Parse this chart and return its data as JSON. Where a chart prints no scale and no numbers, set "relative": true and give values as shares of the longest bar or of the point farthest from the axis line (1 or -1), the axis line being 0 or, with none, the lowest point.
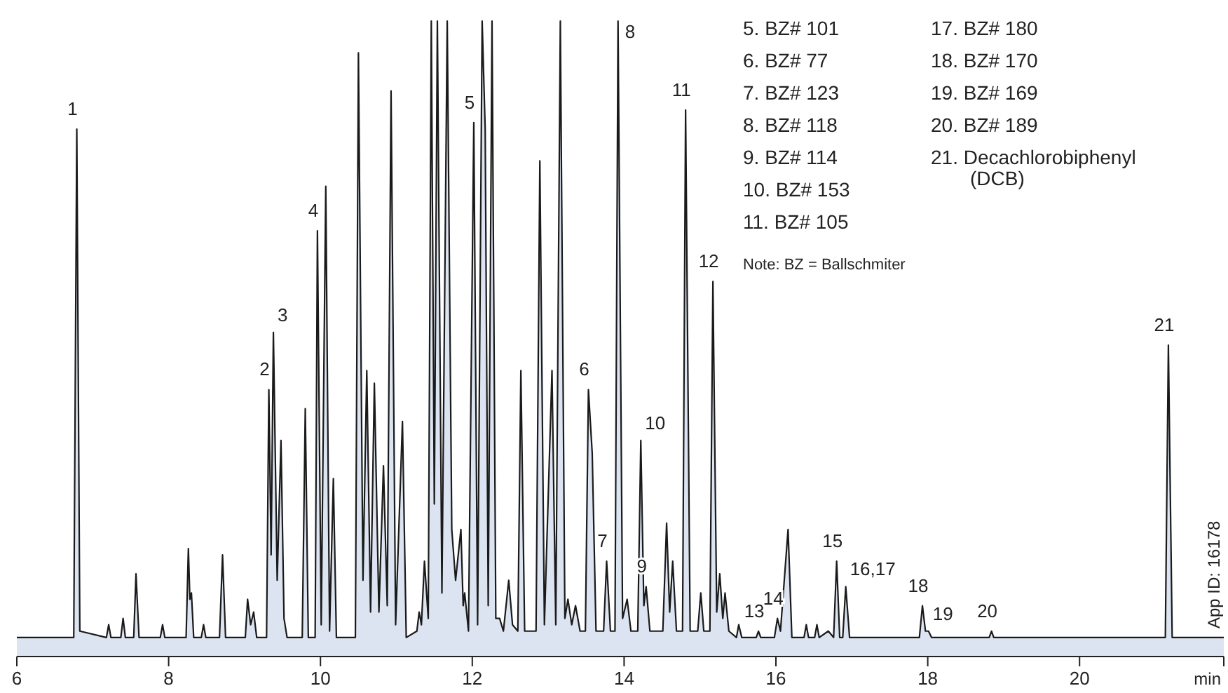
{
  "chart_data": {
    "type": "area",
    "relative": true,
    "xlabel": "min",
    "xlim": [
      6,
      21.9
    ],
    "xticks": [
      6,
      8,
      10,
      12,
      14,
      16,
      18,
      20
    ],
    "series": [
      {
        "color": "#dce4f1",
        "x": [
          6.0,
          6.75,
          6.79,
          6.83,
          7.18,
          7.21,
          7.24,
          7.37,
          7.4,
          7.43,
          7.54,
          7.57,
          7.61,
          7.89,
          7.92,
          7.95,
          8.23,
          8.26,
          8.28,
          8.3,
          8.33,
          8.43,
          8.46,
          8.49,
          8.67,
          8.71,
          8.75,
          9.01,
          9.04,
          9.08,
          9.12,
          9.16,
          9.29,
          9.32,
          9.35,
          9.38,
          9.43,
          9.48,
          9.52,
          9.56,
          9.76,
          9.8,
          9.84,
          9.93,
          9.96,
          10.01,
          10.07,
          10.12,
          10.17,
          10.21,
          10.46,
          10.5,
          10.56,
          10.61,
          10.66,
          10.71,
          10.77,
          10.83,
          10.88,
          10.93,
          10.99,
          11.08,
          11.13,
          11.27,
          11.3,
          11.33,
          11.37,
          11.42,
          11.46,
          11.5,
          11.54,
          11.6,
          11.67,
          11.73,
          11.78,
          11.85,
          11.88,
          11.9,
          11.95,
          12.02,
          12.07,
          12.13,
          12.17,
          12.21,
          12.26,
          12.31,
          12.36,
          12.41,
          12.48,
          12.53,
          12.6,
          12.64,
          12.69,
          12.84,
          12.89,
          12.95,
          13.05,
          13.1,
          13.16,
          13.22,
          13.26,
          13.31,
          13.36,
          13.42,
          13.49,
          13.53,
          13.58,
          13.63,
          13.73,
          13.77,
          13.82,
          13.88,
          13.92,
          13.98,
          14.04,
          14.09,
          14.18,
          14.22,
          14.26,
          14.29,
          14.34,
          14.51,
          14.56,
          14.6,
          14.64,
          14.69,
          14.77,
          14.81,
          14.87,
          14.97,
          15.01,
          15.05,
          15.13,
          15.17,
          15.22,
          15.26,
          15.3,
          15.33,
          15.38,
          15.48,
          15.51,
          15.55,
          15.74,
          15.77,
          15.8,
          15.98,
          16.02,
          16.06,
          16.16,
          16.21,
          16.37,
          16.4,
          16.43,
          16.51,
          16.54,
          16.57,
          16.69,
          16.76,
          16.8,
          16.84,
          16.88,
          16.92,
          16.97,
          17.89,
          17.93,
          17.97,
          18.01,
          18.05,
          18.81,
          18.84,
          18.87,
          21.13,
          21.17,
          21.22,
          21.9
        ],
        "values": [
          0.03,
          0.03,
          0.83,
          0.04,
          0.03,
          0.05,
          0.03,
          0.03,
          0.06,
          0.03,
          0.03,
          0.13,
          0.03,
          0.03,
          0.05,
          0.03,
          0.03,
          0.17,
          0.09,
          0.1,
          0.03,
          0.03,
          0.05,
          0.03,
          0.03,
          0.16,
          0.03,
          0.03,
          0.09,
          0.05,
          0.07,
          0.03,
          0.03,
          0.42,
          0.16,
          0.51,
          0.12,
          0.34,
          0.06,
          0.03,
          0.03,
          0.39,
          0.03,
          0.03,
          0.67,
          0.05,
          0.74,
          0.04,
          0.28,
          0.03,
          0.03,
          0.95,
          0.12,
          0.45,
          0.07,
          0.43,
          0.07,
          0.3,
          0.08,
          0.89,
          0.05,
          0.37,
          0.03,
          0.04,
          0.07,
          0.05,
          0.15,
          0.06,
          1.0,
          0.24,
          1.0,
          0.1,
          1.0,
          0.2,
          0.12,
          0.2,
          0.08,
          0.1,
          0.04,
          0.84,
          0.05,
          1.0,
          0.83,
          0.08,
          1.0,
          0.06,
          0.06,
          0.04,
          0.12,
          0.05,
          0.04,
          0.45,
          0.04,
          0.04,
          0.78,
          0.05,
          0.45,
          0.05,
          1.0,
          0.06,
          0.09,
          0.05,
          0.08,
          0.04,
          0.04,
          0.42,
          0.32,
          0.04,
          0.04,
          0.15,
          0.04,
          0.04,
          1.0,
          0.06,
          0.09,
          0.04,
          0.04,
          0.34,
          0.08,
          0.11,
          0.04,
          0.04,
          0.21,
          0.07,
          0.15,
          0.04,
          0.04,
          0.86,
          0.04,
          0.04,
          0.1,
          0.04,
          0.04,
          0.59,
          0.07,
          0.13,
          0.06,
          0.1,
          0.04,
          0.03,
          0.05,
          0.03,
          0.03,
          0.04,
          0.03,
          0.03,
          0.06,
          0.04,
          0.2,
          0.03,
          0.03,
          0.05,
          0.03,
          0.03,
          0.05,
          0.03,
          0.04,
          0.03,
          0.15,
          0.03,
          0.03,
          0.11,
          0.03,
          0.03,
          0.08,
          0.04,
          0.04,
          0.03,
          0.03,
          0.04,
          0.03,
          0.03,
          0.49,
          0.03,
          0.03
        ]
      }
    ],
    "annotations": [
      {
        "text": "1",
        "x": 6.79,
        "y": 0.83
      },
      {
        "text": "2",
        "x": 9.32,
        "y": 0.42
      },
      {
        "text": "3",
        "x": 9.38,
        "y": 0.51
      },
      {
        "text": "4",
        "x": 9.96,
        "y": 0.67
      },
      {
        "text": "5",
        "x": 12.02,
        "y": 0.84
      },
      {
        "text": "6",
        "x": 13.53,
        "y": 0.42
      },
      {
        "text": "7",
        "x": 13.77,
        "y": 0.15
      },
      {
        "text": "8",
        "x": 13.92,
        "y": 1.0
      },
      {
        "text": "9",
        "x": 14.29,
        "y": 0.11
      },
      {
        "text": "10",
        "x": 14.22,
        "y": 0.34
      },
      {
        "text": "11",
        "x": 14.81,
        "y": 0.86
      },
      {
        "text": "12",
        "x": 15.17,
        "y": 0.59
      },
      {
        "text": "13",
        "x": 15.77,
        "y": 0.04
      },
      {
        "text": "14",
        "x": 16.02,
        "y": 0.06
      },
      {
        "text": "15",
        "x": 16.8,
        "y": 0.15
      },
      {
        "text": "16,17",
        "x": 16.92,
        "y": 0.11
      },
      {
        "text": "18",
        "x": 17.93,
        "y": 0.08
      },
      {
        "text": "19",
        "x": 18.01,
        "y": 0.04
      },
      {
        "text": "20",
        "x": 18.84,
        "y": 0.04
      },
      {
        "text": "21",
        "x": 21.17,
        "y": 0.49
      },
      "5.  BZ# 101",
      "6.  BZ# 77",
      "7.  BZ# 123",
      "8.  BZ# 118",
      "9.  BZ# 114",
      "10.  BZ# 153",
      "11.  BZ# 105",
      "Note: BZ = Ballschmiter",
      "17.  BZ# 180",
      "18.  BZ# 170",
      "19.  BZ# 169",
      "20.  BZ# 189",
      "21.  Decachlorobiphenyl (DCB)",
      "App ID: 16178"
    ]
  }
}
